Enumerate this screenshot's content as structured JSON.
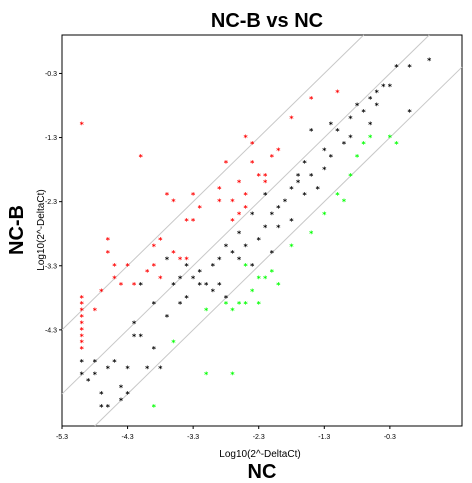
{
  "chart_data": {
    "type": "scatter",
    "title": "NC-B vs NC",
    "xlabel_small": "Log10(2^-DeltaCt)",
    "xlabel_big": "NC",
    "ylabel_small": "Log10(2^-DeltaCt)",
    "ylabel_big": "NC-B",
    "xlim": [
      -5.3,
      0.8
    ],
    "ylim": [
      -5.8,
      0.3
    ],
    "x_ticks": [
      "-5.3",
      "-4.3",
      "-3.3",
      "-2.3",
      "-1.3",
      "-0.3"
    ],
    "y_ticks": [
      "-0.3",
      "-1.3",
      "-2.3",
      "-3.3",
      "-4.3"
    ],
    "x_tick_values": [
      -5.3,
      -4.3,
      -3.3,
      -2.3,
      -1.3,
      -0.3
    ],
    "y_tick_values": [
      -0.3,
      -1.3,
      -2.3,
      -3.3,
      -4.3
    ],
    "reference_line_offsets": [
      1,
      0,
      -1
    ],
    "grid": false,
    "colors": {
      "up": "#ff0000",
      "unchanged": "#000000",
      "down": "#00ff00",
      "line": "#c8c8c8"
    },
    "series": [
      {
        "color_key": "up",
        "points": [
          [
            -5.0,
            -1.1
          ],
          [
            -4.1,
            -1.6
          ],
          [
            -4.6,
            -2.9
          ],
          [
            -4.6,
            -3.1
          ],
          [
            -4.5,
            -3.5
          ],
          [
            -4.4,
            -3.6
          ],
          [
            -4.3,
            -3.3
          ],
          [
            -4.2,
            -3.6
          ],
          [
            -4.5,
            -3.3
          ],
          [
            -4.7,
            -3.7
          ],
          [
            -4.8,
            -4.0
          ],
          [
            -5.0,
            -3.8
          ],
          [
            -5.0,
            -3.9
          ],
          [
            -5.0,
            -4.0
          ],
          [
            -5.0,
            -4.1
          ],
          [
            -5.0,
            -4.2
          ],
          [
            -5.0,
            -4.3
          ],
          [
            -5.0,
            -4.4
          ],
          [
            -5.0,
            -4.5
          ],
          [
            -5.0,
            -4.6
          ],
          [
            -4.0,
            -3.4
          ],
          [
            -3.9,
            -3.3
          ],
          [
            -3.8,
            -3.5
          ],
          [
            -3.7,
            -2.2
          ],
          [
            -3.6,
            -2.3
          ],
          [
            -3.4,
            -2.6
          ],
          [
            -3.9,
            -3.0
          ],
          [
            -3.8,
            -2.9
          ],
          [
            -3.6,
            -3.1
          ],
          [
            -3.5,
            -3.2
          ],
          [
            -3.4,
            -3.2
          ],
          [
            -3.3,
            -2.2
          ],
          [
            -3.2,
            -2.4
          ],
          [
            -3.3,
            -2.6
          ],
          [
            -2.9,
            -2.3
          ],
          [
            -2.8,
            -1.7
          ],
          [
            -2.9,
            -2.1
          ],
          [
            -2.7,
            -2.3
          ],
          [
            -2.6,
            -2.0
          ],
          [
            -2.5,
            -2.2
          ],
          [
            -2.5,
            -2.4
          ],
          [
            -2.3,
            -1.9
          ],
          [
            -2.2,
            -1.9
          ],
          [
            -2.1,
            -1.6
          ],
          [
            -2.0,
            -1.5
          ],
          [
            -2.4,
            -1.4
          ],
          [
            -2.5,
            -1.3
          ],
          [
            -2.7,
            -2.6
          ],
          [
            -2.2,
            -2.0
          ],
          [
            -1.1,
            -0.6
          ],
          [
            -1.5,
            -0.7
          ],
          [
            -1.8,
            -1.0
          ],
          [
            -2.6,
            -2.5
          ],
          [
            -2.4,
            -1.7
          ]
        ]
      },
      {
        "color_key": "unchanged",
        "points": [
          [
            -5.0,
            -4.8
          ],
          [
            -5.0,
            -5.0
          ],
          [
            -4.9,
            -5.1
          ],
          [
            -4.8,
            -4.8
          ],
          [
            -4.8,
            -5.0
          ],
          [
            -4.7,
            -5.3
          ],
          [
            -4.7,
            -5.5
          ],
          [
            -4.6,
            -5.5
          ],
          [
            -4.6,
            -4.9
          ],
          [
            -4.5,
            -4.8
          ],
          [
            -4.4,
            -5.2
          ],
          [
            -4.4,
            -5.4
          ],
          [
            -4.3,
            -5.3
          ],
          [
            -4.2,
            -4.4
          ],
          [
            -4.1,
            -4.4
          ],
          [
            -4.1,
            -3.6
          ],
          [
            -4.0,
            -4.9
          ],
          [
            -3.9,
            -4.6
          ],
          [
            -3.8,
            -4.9
          ],
          [
            -3.7,
            -4.1
          ],
          [
            -3.7,
            -3.2
          ],
          [
            -3.6,
            -3.6
          ],
          [
            -3.5,
            -3.9
          ],
          [
            -3.4,
            -3.8
          ],
          [
            -3.4,
            -3.3
          ],
          [
            -3.3,
            -3.5
          ],
          [
            -3.2,
            -3.4
          ],
          [
            -3.2,
            -3.6
          ],
          [
            -3.1,
            -3.6
          ],
          [
            -3.0,
            -3.3
          ],
          [
            -2.9,
            -3.6
          ],
          [
            -2.9,
            -3.2
          ],
          [
            -2.8,
            -3.8
          ],
          [
            -2.8,
            -3.0
          ],
          [
            -2.7,
            -3.1
          ],
          [
            -2.6,
            -3.2
          ],
          [
            -2.5,
            -3.0
          ],
          [
            -2.4,
            -3.3
          ],
          [
            -2.3,
            -2.9
          ],
          [
            -2.2,
            -2.7
          ],
          [
            -2.1,
            -2.5
          ],
          [
            -2.1,
            -3.1
          ],
          [
            -2.0,
            -2.7
          ],
          [
            -1.9,
            -2.3
          ],
          [
            -1.8,
            -2.6
          ],
          [
            -1.8,
            -2.1
          ],
          [
            -1.7,
            -2.0
          ],
          [
            -1.6,
            -2.2
          ],
          [
            -1.6,
            -1.7
          ],
          [
            -1.5,
            -1.9
          ],
          [
            -1.4,
            -2.1
          ],
          [
            -1.3,
            -1.5
          ],
          [
            -1.3,
            -1.8
          ],
          [
            -1.2,
            -1.6
          ],
          [
            -1.1,
            -1.2
          ],
          [
            -1.0,
            -1.4
          ],
          [
            -0.9,
            -1.0
          ],
          [
            -0.9,
            -1.3
          ],
          [
            -0.8,
            -0.8
          ],
          [
            -0.7,
            -0.9
          ],
          [
            -0.6,
            -0.7
          ],
          [
            -0.5,
            -0.6
          ],
          [
            -0.4,
            -0.5
          ],
          [
            -0.3,
            -0.5
          ],
          [
            -0.2,
            -0.2
          ],
          [
            0.0,
            -0.2
          ],
          [
            0.3,
            -0.1
          ],
          [
            -0.6,
            -1.1
          ],
          [
            -1.5,
            -1.2
          ],
          [
            -2.4,
            -2.5
          ],
          [
            -2.0,
            -2.4
          ],
          [
            -2.6,
            -2.8
          ],
          [
            -3.0,
            -3.7
          ],
          [
            -3.9,
            -3.9
          ],
          [
            -4.3,
            -4.9
          ],
          [
            -4.2,
            -4.2
          ],
          [
            -3.5,
            -3.5
          ],
          [
            -2.2,
            -2.2
          ],
          [
            -1.7,
            -1.9
          ],
          [
            -1.2,
            -1.1
          ],
          [
            -0.5,
            -0.8
          ],
          [
            0.0,
            -0.9
          ]
        ]
      },
      {
        "color_key": "down",
        "points": [
          [
            -3.9,
            -5.5
          ],
          [
            -3.6,
            -4.5
          ],
          [
            -3.1,
            -4.0
          ],
          [
            -2.8,
            -3.9
          ],
          [
            -2.7,
            -4.0
          ],
          [
            -2.5,
            -3.9
          ],
          [
            -2.4,
            -3.7
          ],
          [
            -2.3,
            -3.5
          ],
          [
            -2.2,
            -3.5
          ],
          [
            -2.1,
            -3.4
          ],
          [
            -2.0,
            -3.6
          ],
          [
            -2.5,
            -3.3
          ],
          [
            -1.8,
            -3.0
          ],
          [
            -1.5,
            -2.8
          ],
          [
            -1.3,
            -2.5
          ],
          [
            -1.1,
            -2.2
          ],
          [
            -0.9,
            -1.9
          ],
          [
            -0.8,
            -1.6
          ],
          [
            -0.7,
            -1.4
          ],
          [
            -0.6,
            -1.3
          ],
          [
            -0.3,
            -1.3
          ],
          [
            -0.2,
            -1.4
          ],
          [
            -2.3,
            -3.9
          ],
          [
            -3.1,
            -5.0
          ],
          [
            -2.7,
            -5.0
          ],
          [
            -2.6,
            -3.9
          ],
          [
            -1.0,
            -2.3
          ]
        ]
      }
    ]
  }
}
